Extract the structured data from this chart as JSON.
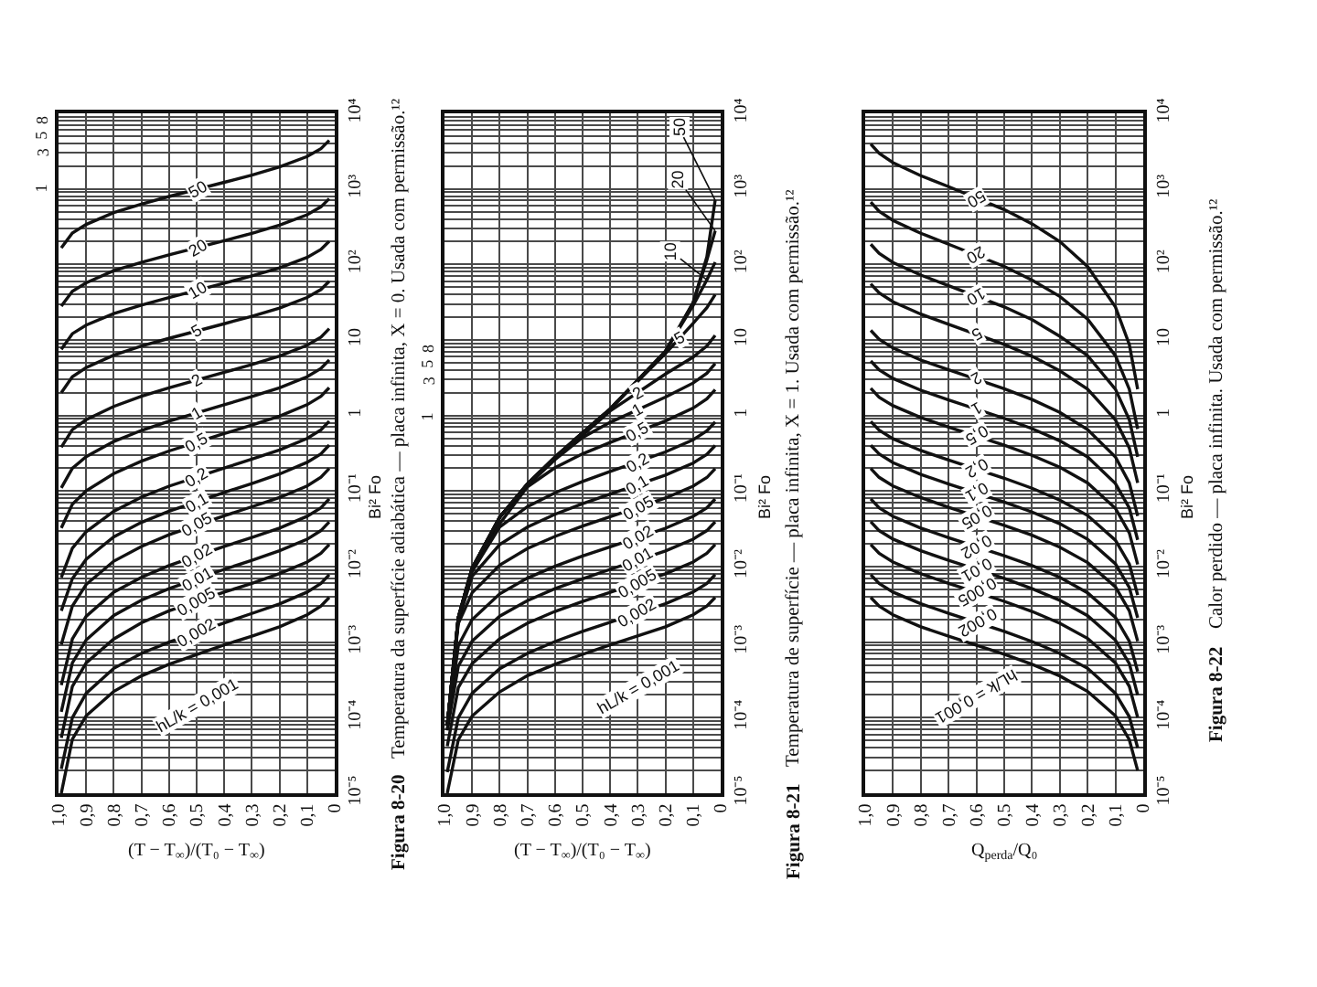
{
  "chart_data": [
    {
      "type": "line",
      "xlabel": "(T − T$_{∞}$)/(T₀ − T$_{∞}$)",
      "ylabel": "Bi² Fo",
      "log": "y",
      "grid": true,
      "annotations": [
        "Figura 8-20",
        "Temperatura da superfície adiabática — placa infinita, X = 0. Usada com permissão.¹²",
        "1",
        "3",
        "5",
        "8"
      ],
      "x": [
        0.99,
        0.95,
        0.9,
        0.8,
        0.7,
        0.6,
        0.4,
        0.3,
        0.2,
        0.1,
        0.05,
        0.02
      ],
      "xlim": [
        1,
        0
      ],
      "xticks": [
        {
          "value": 1,
          "label": "1,0"
        },
        {
          "value": 0.9,
          "label": "0,9"
        },
        {
          "value": 0.8,
          "label": "0,8"
        },
        {
          "value": 0.7,
          "label": "0,7"
        },
        {
          "value": 0.6,
          "label": "0,6"
        },
        {
          "value": 0.5,
          "label": "0,5"
        },
        {
          "value": 0.4,
          "label": "0,4"
        },
        {
          "value": 0.3,
          "label": "0,3"
        },
        {
          "value": 0.2,
          "label": "0,2"
        },
        {
          "value": 0.1,
          "label": "0,1"
        },
        {
          "value": 0,
          "label": "0"
        }
      ],
      "ylim": [
        1e-05,
        10000
      ],
      "yticks": [
        {
          "value": 1e-05,
          "label": "10⁻⁵"
        },
        {
          "value": 0.0001,
          "label": "10⁻⁴"
        },
        {
          "value": 0.001,
          "label": "10⁻³"
        },
        {
          "value": 0.01,
          "label": "10⁻²"
        },
        {
          "value": 0.1,
          "label": "10⁻¹"
        },
        {
          "value": 1,
          "label": "1"
        },
        {
          "value": 10,
          "label": "10"
        },
        {
          "value": 100,
          "label": "10²"
        },
        {
          "value": 1000,
          "label": "10³"
        },
        {
          "value": 10000,
          "label": "10⁴"
        },
        {
          "value": 2e-05,
          "label": null
        },
        {
          "value": 3e-05,
          "label": null
        },
        {
          "value": 4e-05,
          "label": null
        },
        {
          "value": 5e-05,
          "label": null
        },
        {
          "value": 6e-05,
          "label": null
        },
        {
          "value": 7e-05,
          "label": null
        },
        {
          "value": 8e-05,
          "label": null
        },
        {
          "value": 9e-05,
          "label": null
        },
        {
          "value": 0.0002,
          "label": null
        },
        {
          "value": 0.0003,
          "label": null
        },
        {
          "value": 0.0004,
          "label": null
        },
        {
          "value": 0.0005,
          "label": null
        },
        {
          "value": 0.0006,
          "label": null
        },
        {
          "value": 0.0007,
          "label": null
        },
        {
          "value": 0.0008,
          "label": null
        },
        {
          "value": 0.0009,
          "label": null
        },
        {
          "value": 0.002,
          "label": null
        },
        {
          "value": 0.003,
          "label": null
        },
        {
          "value": 0.004,
          "label": null
        },
        {
          "value": 0.005,
          "label": null
        },
        {
          "value": 0.006,
          "label": null
        },
        {
          "value": 0.007,
          "label": null
        },
        {
          "value": 0.008,
          "label": null
        },
        {
          "value": 0.009,
          "label": null
        },
        {
          "value": 0.02,
          "label": null
        },
        {
          "value": 0.03,
          "label": null
        },
        {
          "value": 0.04,
          "label": null
        },
        {
          "value": 0.05,
          "label": null
        },
        {
          "value": 0.06,
          "label": null
        },
        {
          "value": 0.07,
          "label": null
        },
        {
          "value": 0.08,
          "label": null
        },
        {
          "value": 0.09,
          "label": null
        },
        {
          "value": 0.2,
          "label": null
        },
        {
          "value": 0.3,
          "label": null
        },
        {
          "value": 0.4,
          "label": null
        },
        {
          "value": 0.5,
          "label": null
        },
        {
          "value": 0.6,
          "label": null
        },
        {
          "value": 0.7,
          "label": null
        },
        {
          "value": 0.8,
          "label": null
        },
        {
          "value": 0.9,
          "label": null
        },
        {
          "value": 2,
          "label": null
        },
        {
          "value": 3,
          "label": null
        },
        {
          "value": 4,
          "label": null
        },
        {
          "value": 5,
          "label": null
        },
        {
          "value": 6,
          "label": null
        },
        {
          "value": 7,
          "label": null
        },
        {
          "value": 8,
          "label": null
        },
        {
          "value": 9,
          "label": null
        },
        {
          "value": 20,
          "label": null
        },
        {
          "value": 30,
          "label": null
        },
        {
          "value": 40,
          "label": null
        },
        {
          "value": 50,
          "label": null
        },
        {
          "value": 60,
          "label": null
        },
        {
          "value": 70,
          "label": null
        },
        {
          "value": 80,
          "label": null
        },
        {
          "value": 90,
          "label": null
        },
        {
          "value": 200,
          "label": null
        },
        {
          "value": 300,
          "label": null
        },
        {
          "value": 400,
          "label": null
        },
        {
          "value": 500,
          "label": null
        },
        {
          "value": 600,
          "label": null
        },
        {
          "value": 700,
          "label": null
        },
        {
          "value": 800,
          "label": null
        },
        {
          "value": 900,
          "label": null
        },
        {
          "value": 2000,
          "label": null
        },
        {
          "value": 3000,
          "label": null
        },
        {
          "value": 4000,
          "label": null
        },
        {
          "value": 5000,
          "label": null
        },
        {
          "value": 6000,
          "label": null
        },
        {
          "value": 7000,
          "label": null
        },
        {
          "value": 8000,
          "label": null
        },
        {
          "value": 9000,
          "label": null
        }
      ],
      "series": [
        {
          "name": "hL/k = 0,001",
          "color": "#111111",
          "values": [
            1e-05,
            5.2e-05,
            0.000106,
            0.000223,
            0.000357,
            0.00051,
            0.00092,
            0.0012,
            0.0016,
            0.0023,
            0.003,
            0.0039
          ]
        },
        {
          "name": "0,002",
          "color": "#111111",
          "values": [
            2.1e-05,
            0.0001,
            0.00021,
            0.00045,
            0.00071,
            0.001,
            0.0018,
            0.0024,
            0.0032,
            0.0046,
            0.006,
            0.0078
          ]
        },
        {
          "name": "0,005",
          "color": "#111111",
          "values": [
            5.4e-05,
            0.00026,
            0.00053,
            0.0011,
            0.0018,
            0.0026,
            0.0046,
            0.006,
            0.0081,
            0.0115,
            0.015,
            0.0196
          ]
        },
        {
          "name": "0,01",
          "color": "#111111",
          "values": [
            0.00012,
            0.00053,
            0.00107,
            0.00226,
            0.0036,
            0.0051,
            0.0092,
            0.0121,
            0.0162,
            0.023,
            0.03,
            0.039
          ]
        },
        {
          "name": "0,02",
          "color": "#111111",
          "values": [
            0.00027,
            0.0011,
            0.0022,
            0.0046,
            0.0072,
            0.0103,
            0.0185,
            0.0243,
            0.0324,
            0.0464,
            0.06,
            0.079
          ]
        },
        {
          "name": "0,05",
          "color": "#111111",
          "values": [
            0.00093,
            0.003,
            0.0058,
            0.0118,
            0.0185,
            0.0264,
            0.047,
            0.062,
            0.082,
            0.117,
            0.153,
            0.199
          ]
        },
        {
          "name": "0,1",
          "color": "#111111",
          "values": [
            0.0026,
            0.0069,
            0.0125,
            0.0247,
            0.0385,
            0.054,
            0.096,
            0.126,
            0.168,
            0.24,
            0.311,
            0.406
          ]
        },
        {
          "name": "0,2",
          "color": "#111111",
          "values": [
            0.0072,
            0.0175,
            0.029,
            0.054,
            0.083,
            0.116,
            0.202,
            0.264,
            0.35,
            0.498,
            0.646,
            0.842
          ]
        },
        {
          "name": "0,5",
          "color": "#111111",
          "values": [
            0.0325,
            0.067,
            0.101,
            0.17,
            0.249,
            0.339,
            0.576,
            0.745,
            0.982,
            1.39,
            1.79,
            2.33
          ]
        },
        {
          "name": "1",
          "color": "#111111",
          "values": [
            0.11,
            0.2,
            0.285,
            0.453,
            0.634,
            0.842,
            1.39,
            1.78,
            2.33,
            3.26,
            4.2,
            5.44
          ]
        },
        {
          "name": "2",
          "color": "#111111",
          "values": [
            0.38,
            0.65,
            0.88,
            1.32,
            1.8,
            2.33,
            3.73,
            4.72,
            6.12,
            8.51,
            10.9,
            14.1
          ]
        },
        {
          "name": "5",
          "color": "#111111",
          "values": [
            2.0,
            3.25,
            4.3,
            6.3,
            8.3,
            10.5,
            16.4,
            20.6,
            26.4,
            36.5,
            46.5,
            59.8
          ]
        },
        {
          "name": "10",
          "color": "#111111",
          "values": [
            7.5,
            12.1,
            15.7,
            22.3,
            28.9,
            36.4,
            56.3,
            70.4,
            90.2,
            124,
            158,
            203
          ]
        },
        {
          "name": "20",
          "color": "#111111",
          "values": [
            28,
            44,
            57,
            82.6,
            106,
            134,
            206,
            258,
            330,
            454,
            578,
            742
          ]
        },
        {
          "name": "50",
          "color": "#111111",
          "values": [
            165,
            260,
            338,
            485,
            630,
            793,
            1220,
            1523,
            1951,
            2681,
            3412,
            4378
          ]
        }
      ]
    },
    {
      "type": "line",
      "xlabel": "(T − T$_{∞}$)/(T₀ − T$_{∞}$)",
      "ylabel": "Bi² Fo",
      "log": "y",
      "grid": true,
      "annotations": [
        "Figura 8-21",
        "Temperatura de superfície — placa infinita, X = 1. Usada com permissão.¹²",
        "1",
        "3",
        "5",
        "8"
      ],
      "x": [
        0.99,
        0.95,
        0.9,
        0.8,
        0.7,
        0.6,
        0.5,
        0.4,
        0.2,
        0.1,
        0.05,
        0.02
      ],
      "xlim": [
        1,
        0
      ],
      "xticks": [
        {
          "value": 1,
          "label": "1,0"
        },
        {
          "value": 0.9,
          "label": "0,9"
        },
        {
          "value": 0.8,
          "label": "0,8"
        },
        {
          "value": 0.7,
          "label": "0,7"
        },
        {
          "value": 0.6,
          "label": "0,6"
        },
        {
          "value": 0.5,
          "label": "0,5"
        },
        {
          "value": 0.4,
          "label": "0,4"
        },
        {
          "value": 0.3,
          "label": "0,3"
        },
        {
          "value": 0.2,
          "label": "0,2"
        },
        {
          "value": 0.1,
          "label": "0,1"
        },
        {
          "value": 0,
          "label": "0"
        }
      ],
      "ylim": [
        1e-05,
        10000
      ],
      "yticks": [
        {
          "value": 1e-05,
          "label": "10⁻⁵"
        },
        {
          "value": 0.0001,
          "label": "10⁻⁴"
        },
        {
          "value": 0.001,
          "label": "10⁻³"
        },
        {
          "value": 0.01,
          "label": "10⁻²"
        },
        {
          "value": 0.1,
          "label": "10⁻¹"
        },
        {
          "value": 1,
          "label": "1"
        },
        {
          "value": 10,
          "label": "10"
        },
        {
          "value": 100,
          "label": "10²"
        },
        {
          "value": 1000,
          "label": "10³"
        },
        {
          "value": 10000,
          "label": "10⁴"
        },
        {
          "value": 2e-05,
          "label": null
        },
        {
          "value": 3e-05,
          "label": null
        },
        {
          "value": 4e-05,
          "label": null
        },
        {
          "value": 5e-05,
          "label": null
        },
        {
          "value": 6e-05,
          "label": null
        },
        {
          "value": 7e-05,
          "label": null
        },
        {
          "value": 8e-05,
          "label": null
        },
        {
          "value": 9e-05,
          "label": null
        },
        {
          "value": 0.0002,
          "label": null
        },
        {
          "value": 0.0003,
          "label": null
        },
        {
          "value": 0.0004,
          "label": null
        },
        {
          "value": 0.0005,
          "label": null
        },
        {
          "value": 0.0006,
          "label": null
        },
        {
          "value": 0.0007,
          "label": null
        },
        {
          "value": 0.0008,
          "label": null
        },
        {
          "value": 0.0009,
          "label": null
        },
        {
          "value": 0.002,
          "label": null
        },
        {
          "value": 0.003,
          "label": null
        },
        {
          "value": 0.004,
          "label": null
        },
        {
          "value": 0.005,
          "label": null
        },
        {
          "value": 0.006,
          "label": null
        },
        {
          "value": 0.007,
          "label": null
        },
        {
          "value": 0.008,
          "label": null
        },
        {
          "value": 0.009,
          "label": null
        },
        {
          "value": 0.02,
          "label": null
        },
        {
          "value": 0.03,
          "label": null
        },
        {
          "value": 0.04,
          "label": null
        },
        {
          "value": 0.05,
          "label": null
        },
        {
          "value": 0.06,
          "label": null
        },
        {
          "value": 0.07,
          "label": null
        },
        {
          "value": 0.08,
          "label": null
        },
        {
          "value": 0.09,
          "label": null
        },
        {
          "value": 0.2,
          "label": null
        },
        {
          "value": 0.3,
          "label": null
        },
        {
          "value": 0.4,
          "label": null
        },
        {
          "value": 0.5,
          "label": null
        },
        {
          "value": 0.6,
          "label": null
        },
        {
          "value": 0.7,
          "label": null
        },
        {
          "value": 0.8,
          "label": null
        },
        {
          "value": 0.9,
          "label": null
        },
        {
          "value": 2,
          "label": null
        },
        {
          "value": 3,
          "label": null
        },
        {
          "value": 4,
          "label": null
        },
        {
          "value": 5,
          "label": null
        },
        {
          "value": 6,
          "label": null
        },
        {
          "value": 7,
          "label": null
        },
        {
          "value": 8,
          "label": null
        },
        {
          "value": 9,
          "label": null
        },
        {
          "value": 20,
          "label": null
        },
        {
          "value": 30,
          "label": null
        },
        {
          "value": 40,
          "label": null
        },
        {
          "value": 50,
          "label": null
        },
        {
          "value": 60,
          "label": null
        },
        {
          "value": 70,
          "label": null
        },
        {
          "value": 80,
          "label": null
        },
        {
          "value": 90,
          "label": null
        },
        {
          "value": 200,
          "label": null
        },
        {
          "value": 300,
          "label": null
        },
        {
          "value": 400,
          "label": null
        },
        {
          "value": 500,
          "label": null
        },
        {
          "value": 600,
          "label": null
        },
        {
          "value": 700,
          "label": null
        },
        {
          "value": 800,
          "label": null
        },
        {
          "value": 900,
          "label": null
        },
        {
          "value": 2000,
          "label": null
        },
        {
          "value": 3000,
          "label": null
        },
        {
          "value": 4000,
          "label": null
        },
        {
          "value": 5000,
          "label": null
        },
        {
          "value": 6000,
          "label": null
        },
        {
          "value": 7000,
          "label": null
        },
        {
          "value": 8000,
          "label": null
        },
        {
          "value": 9000,
          "label": null
        }
      ],
      "series": [
        {
          "name": "hL/k = 0,001",
          "color": "#111111",
          "values": [
            1e-05,
            5.1e-05,
            0.000105,
            0.00022,
            0.00036,
            0.00051,
            0.00069,
            0.00092,
            0.0016,
            0.0023,
            0.003,
            0.0039
          ]
        },
        {
          "name": "0,002",
          "color": "#111111",
          "values": [
            1.9e-05,
            0.0001,
            0.00021,
            0.000445,
            0.00071,
            0.00102,
            0.00139,
            0.00183,
            0.00322,
            0.00461,
            0.006,
            0.00783
          ]
        },
        {
          "name": "0,005",
          "color": "#111111",
          "values": [
            4.2e-05,
            0.00025,
            0.00052,
            0.00111,
            0.00178,
            0.00255,
            0.00346,
            0.00458,
            0.00804,
            0.0115,
            0.015,
            0.0196
          ]
        },
        {
          "name": "0,01",
          "color": "#111111",
          "values": [
            6.8e-05,
            0.00048,
            0.00103,
            0.00221,
            0.00355,
            0.0051,
            0.0069,
            0.0092,
            0.0161,
            0.0231,
            0.03,
            0.0392
          ]
        },
        {
          "name": "0,02",
          "color": "#111111",
          "values": [
            7e-05,
            0.0009,
            0.00199,
            0.00436,
            0.00704,
            0.0101,
            0.0138,
            0.0183,
            0.0322,
            0.0462,
            0.0601,
            0.0786
          ]
        },
        {
          "name": "0,05",
          "color": "#111111",
          "values": [
            7.8e-05,
            0.00176,
            0.0045,
            0.0105,
            0.0173,
            0.0251,
            0.0344,
            0.0457,
            0.0809,
            0.116,
            0.151,
            0.198
          ]
        },
        {
          "name": "0,1",
          "color": "#111111",
          "values": [
            7.8e-05,
            0.0019,
            0.00745,
            0.0196,
            0.0334,
            0.0493,
            0.0682,
            0.0912,
            0.163,
            0.2345,
            0.306,
            0.401
          ]
        },
        {
          "name": "0,2",
          "color": "#111111",
          "values": [
            7.8e-05,
            0.002,
            0.0086,
            0.0335,
            0.062,
            0.095,
            0.134,
            0.1815,
            0.3295,
            0.4776,
            0.6256,
            0.821
          ]
        },
        {
          "name": "0,5",
          "color": "#111111",
          "values": [
            7.8e-05,
            0.0021,
            0.0095,
            0.037,
            0.1136,
            0.2038,
            0.311,
            0.441,
            0.847,
            1.253,
            1.659,
            2.196
          ]
        },
        {
          "name": "1",
          "color": "#111111",
          "values": [
            7.8e-05,
            0.0021,
            0.0095,
            0.045,
            0.118,
            0.26,
            0.511,
            0.813,
            1.75,
            2.69,
            3.62,
            4.86
          ]
        },
        {
          "name": "2",
          "color": "#111111",
          "values": [
            7.8e-05,
            0.0021,
            0.0095,
            0.045,
            0.124,
            0.28,
            0.55,
            1.15,
            3.54,
            5.93,
            8.33,
            11.5
          ]
        },
        {
          "name": "5",
          "color": "#111111",
          "values": [
            7.8e-05,
            0.0021,
            0.0095,
            0.045,
            0.124,
            0.28,
            0.59,
            1.22,
            6.6,
            16.6,
            26.7,
            39.9
          ]
        },
        {
          "name": "10",
          "color": "#111111",
          "values": [
            7.8e-05,
            0.0021,
            0.0095,
            0.045,
            0.124,
            0.28,
            0.59,
            1.22,
            7.1,
            28.4,
            62.4,
            107
          ]
        },
        {
          "name": "20",
          "color": "#111111",
          "values": [
            7.8e-05,
            0.0021,
            0.0095,
            0.045,
            0.124,
            0.28,
            0.59,
            1.22,
            7.1,
            31,
            114.5,
            278
          ]
        },
        {
          "name": "50",
          "color": "#111111",
          "values": [
            7.8e-05,
            0.0021,
            0.0095,
            0.045,
            0.124,
            0.28,
            0.59,
            1.22,
            7.1,
            31,
            126,
            709
          ]
        }
      ]
    },
    {
      "type": "line",
      "xlabel": "Q$_{perda}$/Q₀",
      "ylabel": "Bi² Fo",
      "log": "y",
      "grid": true,
      "annotations": [
        "Figura 8-22",
        "Calor perdido — placa infinita. Usada com permissão.¹²"
      ],
      "x": [
        0.02,
        0.05,
        0.1,
        0.2,
        0.3,
        0.4,
        0.5,
        0.7,
        0.8,
        0.9,
        0.95,
        0.98
      ],
      "xlim": [
        1,
        0
      ],
      "xticks": [
        {
          "value": 1,
          "label": "1,0"
        },
        {
          "value": 0.9,
          "label": "0,9"
        },
        {
          "value": 0.8,
          "label": "0,8"
        },
        {
          "value": 0.7,
          "label": "0,7"
        },
        {
          "value": 0.6,
          "label": "0,6"
        },
        {
          "value": 0.5,
          "label": "0,5"
        },
        {
          "value": 0.4,
          "label": "0,4"
        },
        {
          "value": 0.3,
          "label": "0,3"
        },
        {
          "value": 0.2,
          "label": "0,2"
        },
        {
          "value": 0.1,
          "label": "0,1"
        },
        {
          "value": 0,
          "label": "0"
        }
      ],
      "ylim": [
        1e-05,
        10000
      ],
      "yticks": [
        {
          "value": 1e-05,
          "label": "10⁻⁵"
        },
        {
          "value": 0.0001,
          "label": "10⁻⁴"
        },
        {
          "value": 0.001,
          "label": "10⁻³"
        },
        {
          "value": 0.01,
          "label": "10⁻²"
        },
        {
          "value": 0.1,
          "label": "10⁻¹"
        },
        {
          "value": 1,
          "label": "1"
        },
        {
          "value": 10,
          "label": "10"
        },
        {
          "value": 100,
          "label": "10²"
        },
        {
          "value": 1000,
          "label": "10³"
        },
        {
          "value": 10000,
          "label": "10⁴"
        },
        {
          "value": 2e-05,
          "label": null
        },
        {
          "value": 3e-05,
          "label": null
        },
        {
          "value": 4e-05,
          "label": null
        },
        {
          "value": 5e-05,
          "label": null
        },
        {
          "value": 6e-05,
          "label": null
        },
        {
          "value": 7e-05,
          "label": null
        },
        {
          "value": 8e-05,
          "label": null
        },
        {
          "value": 9e-05,
          "label": null
        },
        {
          "value": 0.0002,
          "label": null
        },
        {
          "value": 0.0003,
          "label": null
        },
        {
          "value": 0.0004,
          "label": null
        },
        {
          "value": 0.0005,
          "label": null
        },
        {
          "value": 0.0006,
          "label": null
        },
        {
          "value": 0.0007,
          "label": null
        },
        {
          "value": 0.0008,
          "label": null
        },
        {
          "value": 0.0009,
          "label": null
        },
        {
          "value": 0.002,
          "label": null
        },
        {
          "value": 0.003,
          "label": null
        },
        {
          "value": 0.004,
          "label": null
        },
        {
          "value": 0.005,
          "label": null
        },
        {
          "value": 0.006,
          "label": null
        },
        {
          "value": 0.007,
          "label": null
        },
        {
          "value": 0.008,
          "label": null
        },
        {
          "value": 0.009,
          "label": null
        },
        {
          "value": 0.02,
          "label": null
        },
        {
          "value": 0.03,
          "label": null
        },
        {
          "value": 0.04,
          "label": null
        },
        {
          "value": 0.05,
          "label": null
        },
        {
          "value": 0.06,
          "label": null
        },
        {
          "value": 0.07,
          "label": null
        },
        {
          "value": 0.08,
          "label": null
        },
        {
          "value": 0.09,
          "label": null
        },
        {
          "value": 0.2,
          "label": null
        },
        {
          "value": 0.3,
          "label": null
        },
        {
          "value": 0.4,
          "label": null
        },
        {
          "value": 0.5,
          "label": null
        },
        {
          "value": 0.6,
          "label": null
        },
        {
          "value": 0.7,
          "label": null
        },
        {
          "value": 0.8,
          "label": null
        },
        {
          "value": 0.9,
          "label": null
        },
        {
          "value": 2,
          "label": null
        },
        {
          "value": 3,
          "label": null
        },
        {
          "value": 4,
          "label": null
        },
        {
          "value": 5,
          "label": null
        },
        {
          "value": 6,
          "label": null
        },
        {
          "value": 7,
          "label": null
        },
        {
          "value": 8,
          "label": null
        },
        {
          "value": 9,
          "label": null
        },
        {
          "value": 20,
          "label": null
        },
        {
          "value": 30,
          "label": null
        },
        {
          "value": 40,
          "label": null
        },
        {
          "value": 50,
          "label": null
        },
        {
          "value": 60,
          "label": null
        },
        {
          "value": 70,
          "label": null
        },
        {
          "value": 80,
          "label": null
        },
        {
          "value": 90,
          "label": null
        },
        {
          "value": 200,
          "label": null
        },
        {
          "value": 300,
          "label": null
        },
        {
          "value": 400,
          "label": null
        },
        {
          "value": 500,
          "label": null
        },
        {
          "value": 600,
          "label": null
        },
        {
          "value": 700,
          "label": null
        },
        {
          "value": 800,
          "label": null
        },
        {
          "value": 900,
          "label": null
        },
        {
          "value": 2000,
          "label": null
        },
        {
          "value": 3000,
          "label": null
        },
        {
          "value": 4000,
          "label": null
        },
        {
          "value": 5000,
          "label": null
        },
        {
          "value": 6000,
          "label": null
        },
        {
          "value": 7000,
          "label": null
        },
        {
          "value": 8000,
          "label": null
        },
        {
          "value": 9000,
          "label": null
        }
      ],
      "series": [
        {
          "name": "hL/k = 0,001",
          "color": "#111111",
          "values": [
            2e-05,
            5.1e-05,
            0.000106,
            0.000223,
            0.000357,
            0.00051,
            0.00069,
            0.0012,
            0.0016,
            0.0023,
            0.003,
            0.0039
          ]
        },
        {
          "name": "0,002",
          "color": "#111111",
          "values": [
            4e-05,
            0.000103,
            0.00021,
            0.00045,
            0.00071,
            0.00102,
            0.00139,
            0.00241,
            0.00322,
            0.0046,
            0.006,
            0.0078
          ]
        },
        {
          "name": "0,005",
          "color": "#111111",
          "values": [
            0.000101,
            0.00026,
            0.00053,
            0.00112,
            0.00178,
            0.00255,
            0.00347,
            0.006,
            0.00805,
            0.0115,
            0.015,
            0.0196
          ]
        },
        {
          "name": "0,01",
          "color": "#111111",
          "values": [
            0.0002,
            0.00052,
            0.00106,
            0.00224,
            0.00358,
            0.0051,
            0.007,
            0.0121,
            0.0162,
            0.0231,
            0.03,
            0.0393
          ]
        },
        {
          "name": "0,02",
          "color": "#111111",
          "values": [
            0.00041,
            0.00103,
            0.00212,
            0.0045,
            0.0072,
            0.0103,
            0.0139,
            0.0242,
            0.0324,
            0.0463,
            0.06,
            0.079
          ]
        },
        {
          "name": "0,05",
          "color": "#111111",
          "values": [
            0.00103,
            0.0026,
            0.0054,
            0.0113,
            0.0181,
            0.026,
            0.0352,
            0.061,
            0.082,
            0.117,
            0.152,
            0.199
          ]
        },
        {
          "name": "0,1",
          "color": "#111111",
          "values": [
            0.0021,
            0.0053,
            0.0109,
            0.023,
            0.0369,
            0.0528,
            0.0716,
            0.124,
            0.166,
            0.238,
            0.31,
            0.404
          ]
        },
        {
          "name": "0,2",
          "color": "#111111",
          "values": [
            0.0042,
            0.0108,
            0.0223,
            0.0475,
            0.076,
            0.109,
            0.148,
            0.257,
            0.344,
            0.492,
            0.64,
            0.835
          ]
        },
        {
          "name": "0,5",
          "color": "#111111",
          "values": [
            0.0107,
            0.028,
            0.059,
            0.128,
            0.207,
            0.297,
            0.404,
            0.703,
            0.94,
            1.35,
            1.75,
            2.29
          ]
        },
        {
          "name": "1",
          "color": "#111111",
          "values": [
            0.0226,
            0.0595,
            0.126,
            0.283,
            0.463,
            0.671,
            0.918,
            1.61,
            2.16,
            3.09,
            4.03,
            5.27
          ]
        },
        {
          "name": "2",
          "color": "#111111",
          "values": [
            0.0467,
            0.128,
            0.283,
            0.65,
            1.1,
            1.63,
            2.26,
            4.03,
            5.42,
            7.82,
            10.2,
            13.4
          ]
        },
        {
          "name": "5",
          "color": "#111111",
          "values": [
            0.128,
            0.372,
            0.877,
            2.23,
            3.9,
            6.08,
            8.72,
            16.1,
            22.0,
            32.0,
            42.1,
            55.3
          ]
        },
        {
          "name": "10",
          "color": "#111111",
          "values": [
            0.283,
            0.877,
            2.23,
            6.2,
            11.2,
            18.6,
            27.4,
            52.4,
            72.2,
            106,
            140,
            185
          ]
        },
        {
          "name": "20",
          "color": "#111111",
          "values": [
            0.665,
            2.23,
            6.2,
            18.9,
            37.7,
            62,
            94.1,
            185,
            258,
            382,
            506,
            669
          ]
        },
        {
          "name": "50",
          "color": "#111111",
          "values": [
            2.23,
            8.7,
            27.4,
            93.5,
            201,
            345,
            532,
            1068,
            1495,
            2226,
            2956,
            3922
          ]
        }
      ]
    }
  ]
}
